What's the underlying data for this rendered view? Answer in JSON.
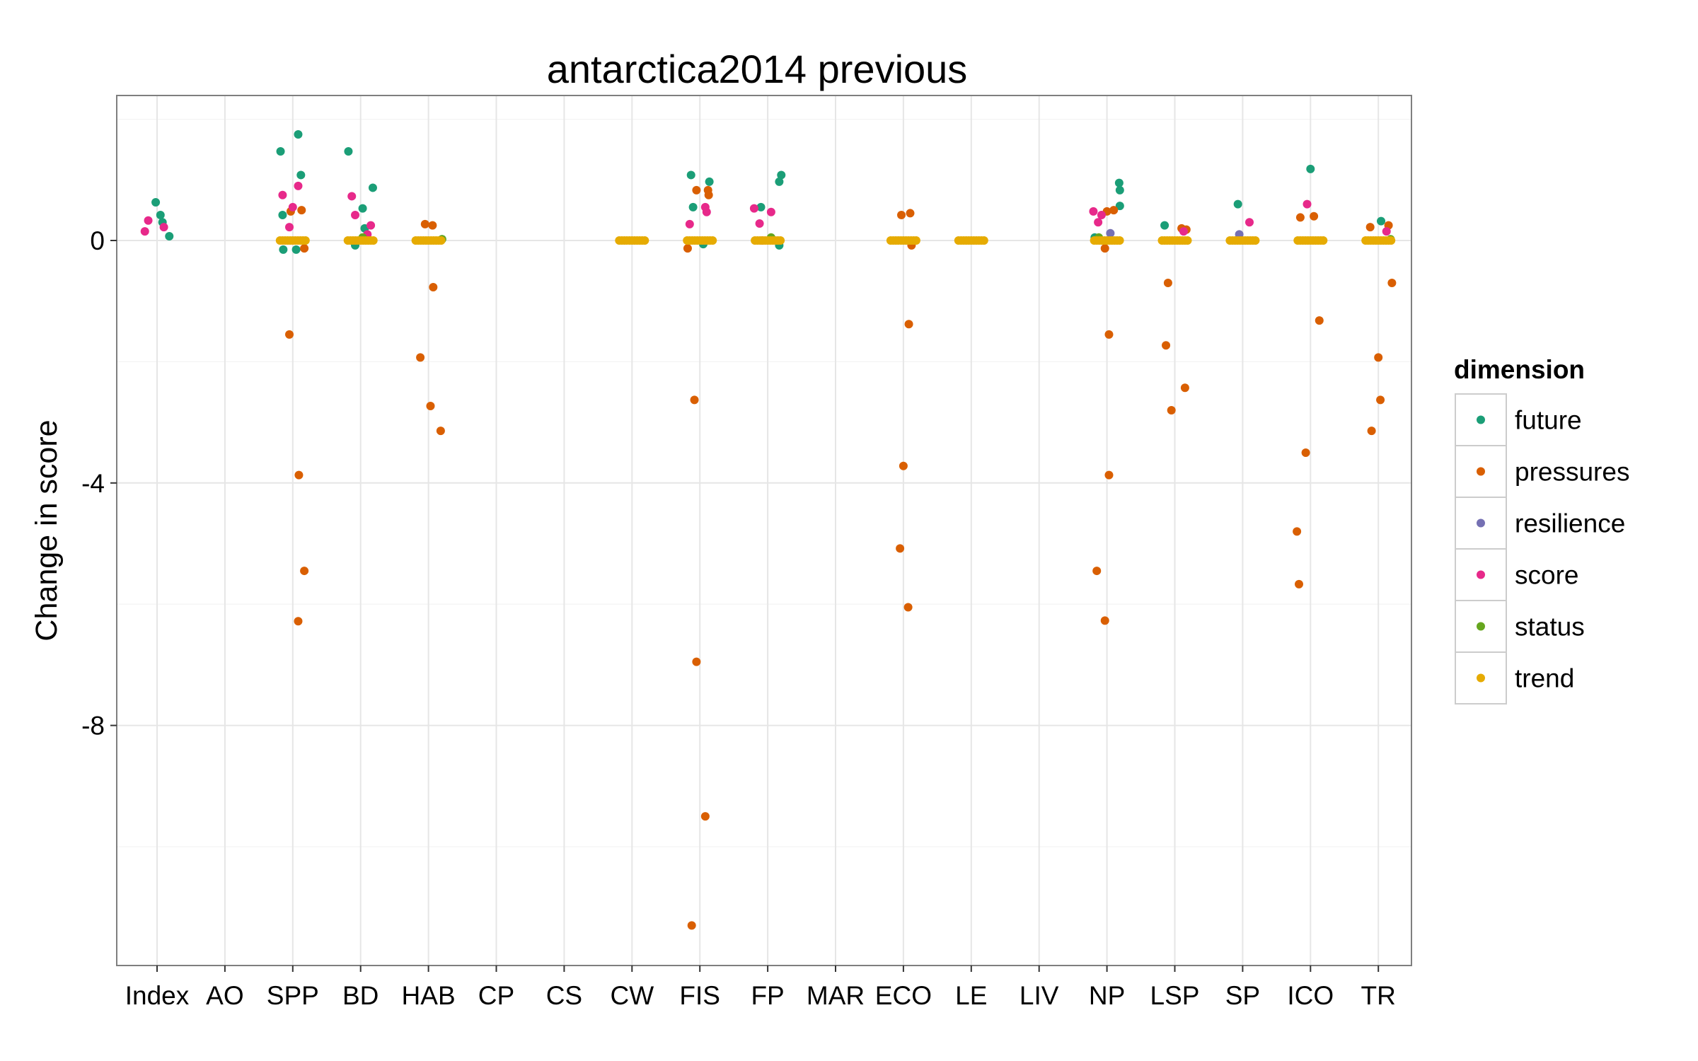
{
  "chart_data": {
    "type": "scatter",
    "title": "antarctica2014 previous",
    "xlabel": "",
    "ylabel": "Change in score",
    "categories": [
      "Index",
      "AO",
      "SPP",
      "BD",
      "HAB",
      "CP",
      "CS",
      "CW",
      "FIS",
      "FP",
      "MAR",
      "ECO",
      "LE",
      "LIV",
      "NP",
      "LSP",
      "SP",
      "ICO",
      "TR"
    ],
    "ylim": [
      -11.8,
      2.4
    ],
    "yticks": [
      {
        "value": 0,
        "label": "0"
      },
      {
        "value": -4,
        "label": "-4"
      },
      {
        "value": -8,
        "label": "-8"
      }
    ],
    "grid": true,
    "legend": {
      "title": "dimension",
      "position": "right",
      "entries": [
        "future",
        "pressures",
        "resilience",
        "score",
        "status",
        "trend"
      ]
    },
    "colors": {
      "future": "#1b9e77",
      "pressures": "#d95f02",
      "resilience": "#7570b3",
      "score": "#e7298a",
      "status": "#66a61e",
      "trend": "#e6ab02"
    },
    "series": [
      {
        "name": "future",
        "points": [
          {
            "cat": "Index",
            "dx": -0.02,
            "y": 0.63
          },
          {
            "cat": "Index",
            "dx": 0.05,
            "y": 0.42
          },
          {
            "cat": "Index",
            "dx": 0.08,
            "y": 0.3
          },
          {
            "cat": "Index",
            "dx": 0.18,
            "y": 0.07
          },
          {
            "cat": "SPP",
            "dx": 0.08,
            "y": 1.75
          },
          {
            "cat": "SPP",
            "dx": -0.18,
            "y": 1.47
          },
          {
            "cat": "SPP",
            "dx": 0.12,
            "y": 1.08
          },
          {
            "cat": "SPP",
            "dx": -0.15,
            "y": 0.42
          },
          {
            "cat": "SPP",
            "dx": -0.14,
            "y": -0.15
          },
          {
            "cat": "SPP",
            "dx": 0.05,
            "y": -0.15
          },
          {
            "cat": "BD",
            "dx": -0.18,
            "y": 1.47
          },
          {
            "cat": "BD",
            "dx": 0.18,
            "y": 0.87
          },
          {
            "cat": "BD",
            "dx": 0.03,
            "y": 0.53
          },
          {
            "cat": "BD",
            "dx": 0.06,
            "y": 0.2
          },
          {
            "cat": "BD",
            "dx": -0.08,
            "y": -0.08
          },
          {
            "cat": "HAB",
            "dx": 0.2,
            "y": 0.02
          },
          {
            "cat": "FIS",
            "dx": -0.13,
            "y": 1.08
          },
          {
            "cat": "FIS",
            "dx": 0.14,
            "y": 0.97
          },
          {
            "cat": "FIS",
            "dx": -0.1,
            "y": 0.55
          },
          {
            "cat": "FIS",
            "dx": 0.05,
            "y": -0.06
          },
          {
            "cat": "FP",
            "dx": 0.2,
            "y": 1.08
          },
          {
            "cat": "FP",
            "dx": 0.17,
            "y": 0.97
          },
          {
            "cat": "FP",
            "dx": -0.1,
            "y": 0.55
          },
          {
            "cat": "FP",
            "dx": 0.17,
            "y": -0.08
          },
          {
            "cat": "NP",
            "dx": 0.18,
            "y": 0.95
          },
          {
            "cat": "NP",
            "dx": 0.19,
            "y": 0.83
          },
          {
            "cat": "NP",
            "dx": 0.19,
            "y": 0.57
          },
          {
            "cat": "NP",
            "dx": -0.18,
            "y": 0.05
          },
          {
            "cat": "LSP",
            "dx": -0.15,
            "y": 0.25
          },
          {
            "cat": "SP",
            "dx": -0.07,
            "y": 0.6
          },
          {
            "cat": "ICO",
            "dx": 0.0,
            "y": 1.18
          },
          {
            "cat": "TR",
            "dx": 0.04,
            "y": 0.32
          }
        ]
      },
      {
        "name": "pressures",
        "points": [
          {
            "cat": "SPP",
            "dx": -0.03,
            "y": 0.48
          },
          {
            "cat": "SPP",
            "dx": 0.13,
            "y": 0.5
          },
          {
            "cat": "SPP",
            "dx": 0.17,
            "y": -0.13
          },
          {
            "cat": "SPP",
            "dx": -0.05,
            "y": -1.55
          },
          {
            "cat": "SPP",
            "dx": 0.09,
            "y": -3.87
          },
          {
            "cat": "SPP",
            "dx": 0.17,
            "y": -5.45
          },
          {
            "cat": "SPP",
            "dx": 0.08,
            "y": -6.28
          },
          {
            "cat": "HAB",
            "dx": -0.05,
            "y": 0.27
          },
          {
            "cat": "HAB",
            "dx": 0.06,
            "y": 0.25
          },
          {
            "cat": "HAB",
            "dx": 0.07,
            "y": -0.77
          },
          {
            "cat": "HAB",
            "dx": -0.12,
            "y": -1.93
          },
          {
            "cat": "HAB",
            "dx": 0.03,
            "y": -2.73
          },
          {
            "cat": "HAB",
            "dx": 0.18,
            "y": -3.14
          },
          {
            "cat": "FIS",
            "dx": -0.05,
            "y": 0.83
          },
          {
            "cat": "FIS",
            "dx": 0.12,
            "y": 0.83
          },
          {
            "cat": "FIS",
            "dx": 0.13,
            "y": 0.75
          },
          {
            "cat": "FIS",
            "dx": -0.18,
            "y": -0.13
          },
          {
            "cat": "FIS",
            "dx": -0.08,
            "y": -2.63
          },
          {
            "cat": "FIS",
            "dx": -0.05,
            "y": -6.95
          },
          {
            "cat": "FIS",
            "dx": 0.08,
            "y": -9.5
          },
          {
            "cat": "FIS",
            "dx": -0.12,
            "y": -11.3
          },
          {
            "cat": "ECO",
            "dx": -0.03,
            "y": 0.42
          },
          {
            "cat": "ECO",
            "dx": 0.1,
            "y": 0.45
          },
          {
            "cat": "ECO",
            "dx": 0.08,
            "y": -1.38
          },
          {
            "cat": "ECO",
            "dx": 0.0,
            "y": -3.72
          },
          {
            "cat": "ECO",
            "dx": -0.05,
            "y": -5.08
          },
          {
            "cat": "ECO",
            "dx": 0.07,
            "y": -6.05
          },
          {
            "cat": "ECO",
            "dx": 0.12,
            "y": -0.08
          },
          {
            "cat": "NP",
            "dx": 0.0,
            "y": 0.48
          },
          {
            "cat": "NP",
            "dx": 0.1,
            "y": 0.5
          },
          {
            "cat": "NP",
            "dx": 0.03,
            "y": -1.55
          },
          {
            "cat": "NP",
            "dx": 0.03,
            "y": -3.87
          },
          {
            "cat": "NP",
            "dx": -0.15,
            "y": -5.45
          },
          {
            "cat": "NP",
            "dx": -0.03,
            "y": -6.27
          },
          {
            "cat": "NP",
            "dx": -0.03,
            "y": -0.13
          },
          {
            "cat": "LSP",
            "dx": 0.1,
            "y": 0.2
          },
          {
            "cat": "LSP",
            "dx": 0.17,
            "y": 0.18
          },
          {
            "cat": "LSP",
            "dx": -0.1,
            "y": -0.7
          },
          {
            "cat": "LSP",
            "dx": -0.13,
            "y": -1.73
          },
          {
            "cat": "LSP",
            "dx": 0.15,
            "y": -2.43
          },
          {
            "cat": "LSP",
            "dx": -0.05,
            "y": -2.8
          },
          {
            "cat": "ICO",
            "dx": -0.15,
            "y": 0.38
          },
          {
            "cat": "ICO",
            "dx": 0.05,
            "y": 0.4
          },
          {
            "cat": "ICO",
            "dx": 0.13,
            "y": -1.32
          },
          {
            "cat": "ICO",
            "dx": -0.07,
            "y": -3.5
          },
          {
            "cat": "ICO",
            "dx": -0.2,
            "y": -4.8
          },
          {
            "cat": "ICO",
            "dx": -0.17,
            "y": -5.67
          },
          {
            "cat": "TR",
            "dx": -0.12,
            "y": 0.22
          },
          {
            "cat": "TR",
            "dx": 0.15,
            "y": 0.25
          },
          {
            "cat": "TR",
            "dx": 0.2,
            "y": -0.7
          },
          {
            "cat": "TR",
            "dx": 0.0,
            "y": -1.93
          },
          {
            "cat": "TR",
            "dx": 0.03,
            "y": -2.63
          },
          {
            "cat": "TR",
            "dx": -0.1,
            "y": -3.14
          }
        ]
      },
      {
        "name": "resilience",
        "points": [
          {
            "cat": "NP",
            "dx": 0.05,
            "y": 0.12
          },
          {
            "cat": "SP",
            "dx": -0.05,
            "y": 0.1
          }
        ]
      },
      {
        "name": "score",
        "points": [
          {
            "cat": "Index",
            "dx": -0.13,
            "y": 0.33
          },
          {
            "cat": "Index",
            "dx": -0.18,
            "y": 0.15
          },
          {
            "cat": "Index",
            "dx": 0.1,
            "y": 0.22
          },
          {
            "cat": "SPP",
            "dx": -0.15,
            "y": 0.75
          },
          {
            "cat": "SPP",
            "dx": 0.08,
            "y": 0.9
          },
          {
            "cat": "SPP",
            "dx": 0.0,
            "y": 0.55
          },
          {
            "cat": "SPP",
            "dx": -0.05,
            "y": 0.22
          },
          {
            "cat": "BD",
            "dx": -0.08,
            "y": 0.42
          },
          {
            "cat": "BD",
            "dx": -0.13,
            "y": 0.73
          },
          {
            "cat": "BD",
            "dx": 0.1,
            "y": 0.1
          },
          {
            "cat": "BD",
            "dx": 0.15,
            "y": 0.25
          },
          {
            "cat": "FIS",
            "dx": 0.08,
            "y": 0.55
          },
          {
            "cat": "FIS",
            "dx": 0.1,
            "y": 0.47
          },
          {
            "cat": "FIS",
            "dx": -0.15,
            "y": 0.27
          },
          {
            "cat": "FP",
            "dx": -0.2,
            "y": 0.53
          },
          {
            "cat": "FP",
            "dx": 0.05,
            "y": 0.47
          },
          {
            "cat": "FP",
            "dx": -0.12,
            "y": 0.28
          },
          {
            "cat": "FP",
            "dx": -0.08,
            "y": 0.0
          },
          {
            "cat": "NP",
            "dx": -0.2,
            "y": 0.48
          },
          {
            "cat": "NP",
            "dx": -0.08,
            "y": 0.42
          },
          {
            "cat": "NP",
            "dx": -0.13,
            "y": 0.3
          },
          {
            "cat": "LSP",
            "dx": 0.13,
            "y": 0.15
          },
          {
            "cat": "SP",
            "dx": 0.1,
            "y": 0.3
          },
          {
            "cat": "ICO",
            "dx": -0.05,
            "y": 0.6
          },
          {
            "cat": "TR",
            "dx": 0.12,
            "y": 0.15
          }
        ]
      },
      {
        "name": "status",
        "points": [
          {
            "cat": "BD",
            "dx": 0.03,
            "y": 0.05
          },
          {
            "cat": "HAB",
            "dx": 0.2,
            "y": 0.02
          },
          {
            "cat": "FP",
            "dx": 0.05,
            "y": 0.05
          },
          {
            "cat": "NP",
            "dx": -0.12,
            "y": 0.05
          },
          {
            "cat": "TR",
            "dx": 0.18,
            "y": 0.02
          }
        ]
      },
      {
        "name": "trend",
        "points": [
          {
            "cat": "SPP",
            "dx": 0.0,
            "y": 0.0
          },
          {
            "cat": "BD",
            "dx": 0.0,
            "y": 0.0
          },
          {
            "cat": "HAB",
            "dx": 0.0,
            "y": 0.0
          },
          {
            "cat": "CW",
            "dx": 0.0,
            "y": 0.0
          },
          {
            "cat": "FIS",
            "dx": 0.0,
            "y": 0.0
          },
          {
            "cat": "FP",
            "dx": 0.0,
            "y": 0.0
          },
          {
            "cat": "ECO",
            "dx": 0.0,
            "y": 0.0
          },
          {
            "cat": "LE",
            "dx": 0.0,
            "y": 0.0
          },
          {
            "cat": "NP",
            "dx": 0.0,
            "y": 0.0
          },
          {
            "cat": "LSP",
            "dx": 0.0,
            "y": 0.0
          },
          {
            "cat": "SP",
            "dx": 0.0,
            "y": 0.0
          },
          {
            "cat": "ICO",
            "dx": 0.0,
            "y": 0.0
          },
          {
            "cat": "TR",
            "dx": 0.0,
            "y": 0.0
          }
        ]
      }
    ]
  }
}
